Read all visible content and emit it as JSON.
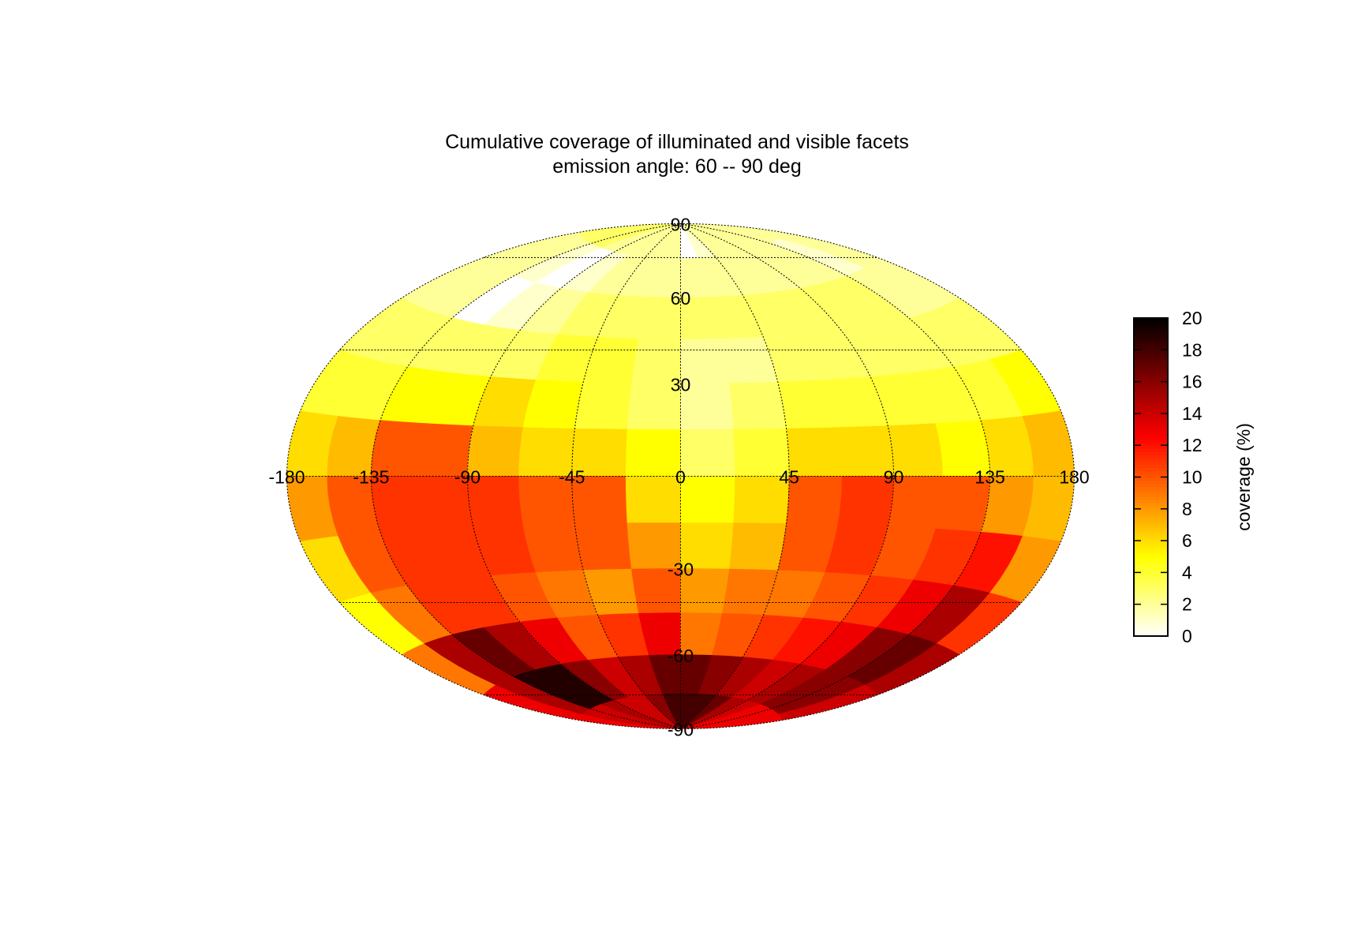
{
  "chart_data": {
    "type": "heatmap",
    "projection": "hammer-aitoff",
    "title": "Cumulative coverage of illuminated and visible facets",
    "subtitle": "emission angle: 60 -- 90 deg",
    "x_ticks": [
      "-180",
      "-135",
      "-90",
      "-45",
      "0",
      "45",
      "90",
      "135",
      "180"
    ],
    "y_ticks": [
      "90",
      "60",
      "30",
      "-30",
      "-60",
      "-90"
    ],
    "colorbar": {
      "label": "coverage (%)",
      "ticks": [
        "0",
        "2",
        "4",
        "6",
        "8",
        "10",
        "12",
        "14",
        "16",
        "18",
        "20"
      ],
      "range": [
        0,
        20
      ],
      "colormap": "hot"
    },
    "lon_bands": [
      -180,
      -157.5,
      -135,
      -112.5,
      -90,
      -67.5,
      -45,
      -22.5,
      0,
      22.5,
      45,
      67.5,
      90,
      112.5,
      135,
      157.5,
      180
    ],
    "lat_bands": [
      90,
      75,
      60,
      45,
      30,
      15,
      0,
      -15,
      -30,
      -45,
      -60,
      -75,
      -90
    ],
    "values": [
      [
        3,
        3,
        3,
        2,
        2,
        2,
        2,
        2,
        0,
        1,
        2,
        2,
        2,
        2,
        2,
        2
      ],
      [
        2,
        2,
        1,
        0,
        1,
        2,
        2,
        2,
        2,
        2,
        2,
        2,
        2,
        2,
        1,
        2
      ],
      [
        2,
        2,
        0,
        1,
        2,
        3,
        3,
        3,
        3,
        3,
        3,
        3,
        3,
        3,
        2,
        2
      ],
      [
        3,
        3,
        3,
        3,
        3,
        4,
        4,
        3,
        2,
        2,
        3,
        3,
        3,
        3,
        3,
        3
      ],
      [
        4,
        4,
        5,
        5,
        6,
        5,
        4,
        3,
        2,
        3,
        4,
        4,
        4,
        4,
        4,
        5
      ],
      [
        6,
        7,
        10,
        10,
        7,
        6,
        6,
        5,
        3,
        4,
        6,
        6,
        6,
        5,
        6,
        7
      ],
      [
        8,
        10,
        11,
        11,
        11,
        10,
        10,
        6,
        5,
        6,
        10,
        11,
        10,
        10,
        8,
        7
      ],
      [
        6,
        10,
        11,
        11,
        11,
        10,
        10,
        8,
        6,
        7,
        10,
        11,
        10,
        11,
        12,
        8
      ],
      [
        5,
        9,
        11,
        11,
        10,
        9,
        8,
        10,
        8,
        9,
        9,
        10,
        11,
        13,
        15,
        11
      ],
      [
        9,
        15,
        17,
        15,
        13,
        10,
        11,
        13,
        9,
        10,
        11,
        12,
        13,
        16,
        17,
        15
      ],
      [
        13,
        15,
        19,
        19,
        16,
        14,
        15,
        17,
        17,
        16,
        15,
        14,
        15,
        16,
        16,
        14
      ],
      [
        13,
        14,
        14,
        15,
        14,
        14,
        16,
        18,
        18,
        18,
        17,
        15,
        14,
        13,
        13,
        13
      ]
    ]
  }
}
